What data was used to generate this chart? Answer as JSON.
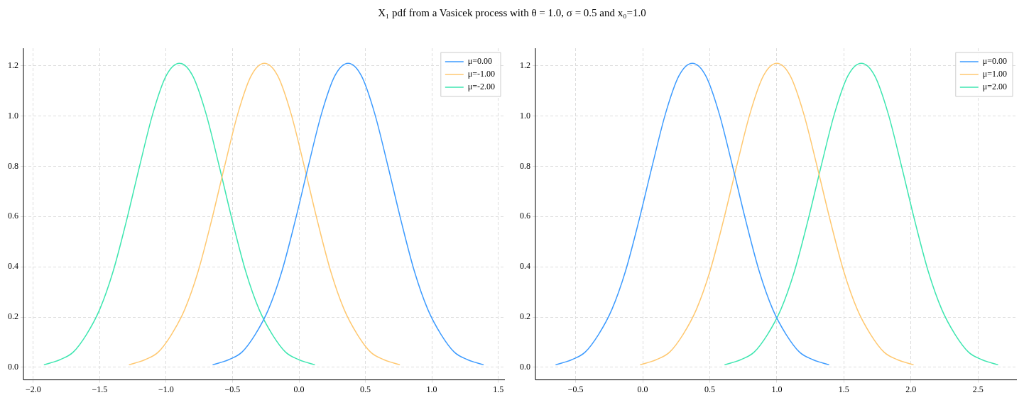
{
  "chart_data": [
    {
      "type": "line",
      "title": "X₁ pdf from a Vasicek process with θ = 1.0, σ = 0.5 and x₀=1.0",
      "xlim": [
        -2.074,
        1.55
      ],
      "ylim": [
        -0.05,
        1.27
      ],
      "xticks": [
        {
          "value": -2,
          "label": "−2.0"
        },
        {
          "value": -1.5,
          "label": "−1.5"
        },
        {
          "value": -1,
          "label": "−1.0"
        },
        {
          "value": -0.5,
          "label": "−0.5"
        },
        {
          "value": 0,
          "label": "0.0"
        },
        {
          "value": 0.5,
          "label": "0.5"
        },
        {
          "value": 1,
          "label": "1.0"
        },
        {
          "value": 1.5,
          "label": "1.5"
        }
      ],
      "yticks": [
        {
          "value": 0,
          "label": "0.0"
        },
        {
          "value": 0.2,
          "label": "0.2"
        },
        {
          "value": 0.4,
          "label": "0.4"
        },
        {
          "value": 0.6,
          "label": "0.6"
        },
        {
          "value": 0.8,
          "label": "0.8"
        },
        {
          "value": 1,
          "label": "1.0"
        },
        {
          "value": 1.2,
          "label": "1.2"
        }
      ],
      "grid": true,
      "legend": "top right",
      "marker": "none",
      "line_style": "solid",
      "series": [
        {
          "name": "μ=0.00",
          "color": "#3d9bff",
          "x": [
            -0.65,
            -0.53,
            -0.43,
            -0.33,
            -0.23,
            -0.13,
            -0.03,
            0.07,
            0.17,
            0.27,
            0.37,
            0.47,
            0.57,
            0.67,
            0.77,
            0.87,
            0.97,
            1.07,
            1.17,
            1.27,
            1.39
          ],
          "values": [
            0.01,
            0.03,
            0.06,
            0.13,
            0.23,
            0.38,
            0.58,
            0.8,
            1.01,
            1.16,
            1.21,
            1.16,
            1.01,
            0.8,
            0.58,
            0.38,
            0.23,
            0.13,
            0.06,
            0.03,
            0.01
          ]
        },
        {
          "name": "μ=-1.00",
          "color": "#ffc870",
          "x": [
            -1.28,
            -1.16,
            -1.06,
            -0.96,
            -0.86,
            -0.76,
            -0.66,
            -0.56,
            -0.46,
            -0.36,
            -0.26,
            -0.16,
            -0.06,
            0.04,
            0.14,
            0.24,
            0.34,
            0.44,
            0.54,
            0.64,
            0.76
          ],
          "values": [
            0.01,
            0.03,
            0.06,
            0.13,
            0.23,
            0.38,
            0.58,
            0.8,
            1.01,
            1.16,
            1.21,
            1.16,
            1.01,
            0.8,
            0.58,
            0.38,
            0.23,
            0.13,
            0.06,
            0.03,
            0.01
          ]
        },
        {
          "name": "μ=-2.00",
          "color": "#3ee6b0",
          "x": [
            -1.92,
            -1.8,
            -1.7,
            -1.6,
            -1.5,
            -1.4,
            -1.3,
            -1.2,
            -1.1,
            -1.0,
            -0.9,
            -0.8,
            -0.7,
            -0.6,
            -0.5,
            -0.4,
            -0.3,
            -0.2,
            -0.1,
            0.0,
            0.12
          ],
          "values": [
            0.01,
            0.03,
            0.06,
            0.13,
            0.23,
            0.38,
            0.58,
            0.8,
            1.01,
            1.16,
            1.21,
            1.16,
            1.01,
            0.8,
            0.58,
            0.38,
            0.23,
            0.13,
            0.06,
            0.03,
            0.01
          ]
        }
      ]
    },
    {
      "type": "line",
      "xlim": [
        -0.8,
        2.79
      ],
      "ylim": [
        -0.05,
        1.27
      ],
      "xticks": [
        {
          "value": -0.5,
          "label": "−0.5"
        },
        {
          "value": 0,
          "label": "0.0"
        },
        {
          "value": 0.5,
          "label": "0.5"
        },
        {
          "value": 1,
          "label": "1.0"
        },
        {
          "value": 1.5,
          "label": "1.5"
        },
        {
          "value": 2,
          "label": "2.0"
        },
        {
          "value": 2.5,
          "label": "2.5"
        }
      ],
      "yticks": [
        {
          "value": 0,
          "label": "0.0"
        },
        {
          "value": 0.2,
          "label": "0.2"
        },
        {
          "value": 0.4,
          "label": "0.4"
        },
        {
          "value": 0.6,
          "label": "0.6"
        },
        {
          "value": 0.8,
          "label": "0.8"
        },
        {
          "value": 1,
          "label": "1.0"
        },
        {
          "value": 1.2,
          "label": "1.2"
        }
      ],
      "grid": true,
      "legend": "top right",
      "marker": "none",
      "line_style": "solid",
      "series": [
        {
          "name": "μ=0.00",
          "color": "#3d9bff",
          "x": [
            -0.65,
            -0.53,
            -0.43,
            -0.33,
            -0.23,
            -0.13,
            -0.03,
            0.07,
            0.17,
            0.27,
            0.37,
            0.47,
            0.57,
            0.67,
            0.77,
            0.87,
            0.97,
            1.07,
            1.17,
            1.27,
            1.39
          ],
          "values": [
            0.01,
            0.03,
            0.06,
            0.13,
            0.23,
            0.38,
            0.58,
            0.8,
            1.01,
            1.16,
            1.21,
            1.16,
            1.01,
            0.8,
            0.58,
            0.38,
            0.23,
            0.13,
            0.06,
            0.03,
            0.01
          ]
        },
        {
          "name": "μ=1.00",
          "color": "#ffc870",
          "x": [
            -0.02,
            0.1,
            0.2,
            0.3,
            0.4,
            0.5,
            0.6,
            0.7,
            0.8,
            0.9,
            1.0,
            1.1,
            1.2,
            1.3,
            1.4,
            1.5,
            1.6,
            1.7,
            1.8,
            1.9,
            2.02
          ],
          "values": [
            0.01,
            0.03,
            0.06,
            0.13,
            0.23,
            0.38,
            0.58,
            0.8,
            1.01,
            1.16,
            1.21,
            1.16,
            1.01,
            0.8,
            0.58,
            0.38,
            0.23,
            0.13,
            0.06,
            0.03,
            0.01
          ]
        },
        {
          "name": "μ=2.00",
          "color": "#3ee6b0",
          "x": [
            0.61,
            0.73,
            0.83,
            0.93,
            1.03,
            1.13,
            1.23,
            1.33,
            1.43,
            1.53,
            1.63,
            1.73,
            1.83,
            1.93,
            2.03,
            2.13,
            2.23,
            2.33,
            2.43,
            2.53,
            2.65
          ],
          "values": [
            0.01,
            0.03,
            0.06,
            0.13,
            0.23,
            0.38,
            0.58,
            0.8,
            1.01,
            1.16,
            1.21,
            1.16,
            1.01,
            0.8,
            0.58,
            0.38,
            0.23,
            0.13,
            0.06,
            0.03,
            0.01
          ]
        }
      ]
    }
  ]
}
